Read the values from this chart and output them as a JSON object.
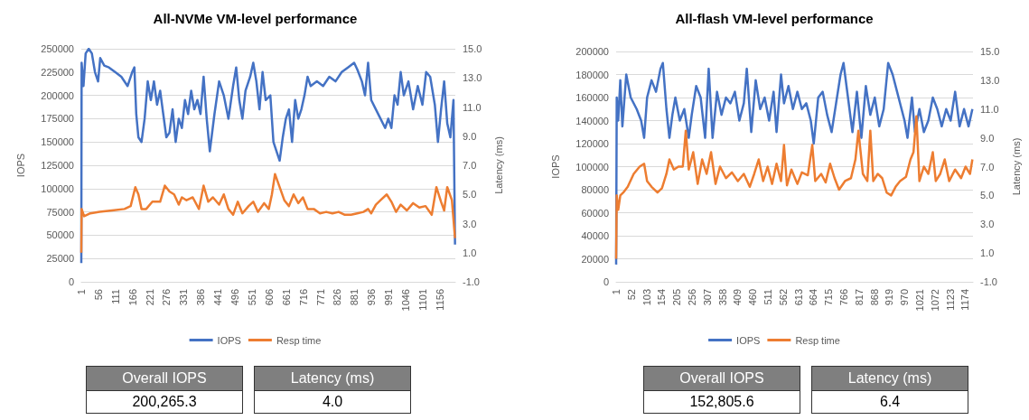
{
  "chart_data": [
    {
      "type": "line",
      "title": "All-NVMe VM-level performance",
      "ylabel": "IOPS",
      "y2label": "Latency (ms)",
      "xlim": [
        1,
        1206
      ],
      "xticks": [
        1,
        56,
        111,
        166,
        221,
        276,
        331,
        386,
        441,
        496,
        551,
        606,
        661,
        716,
        771,
        826,
        881,
        936,
        991,
        1046,
        1101,
        1156
      ],
      "ylim": [
        0,
        250000
      ],
      "yticks": [
        0,
        25000,
        50000,
        75000,
        100000,
        125000,
        150000,
        175000,
        200000,
        225000,
        250000
      ],
      "y2lim": [
        -1,
        15
      ],
      "y2ticks": [
        {
          "value": -1,
          "label": "-1.0"
        },
        {
          "value": 1,
          "label": "1.0"
        },
        {
          "value": 3,
          "label": "3.0"
        },
        {
          "value": 5,
          "label": "5.0"
        },
        {
          "value": 7,
          "label": "7.0"
        },
        {
          "value": 9,
          "label": "9.0"
        },
        {
          "value": 11,
          "label": "11.0"
        },
        {
          "value": 13,
          "label": "13.0"
        },
        {
          "value": 15,
          "label": "15.0"
        }
      ],
      "grid": "y",
      "legend": "bottom",
      "annotations": [
        "Overall IOPS",
        "200,265.3",
        "Latency (ms)",
        "4.0"
      ],
      "series": [
        {
          "name": "IOPS",
          "color": "#4472c4",
          "x": [
            1,
            2,
            8,
            15,
            25,
            35,
            45,
            55,
            62,
            75,
            90,
            110,
            130,
            150,
            165,
            172,
            178,
            185,
            195,
            205,
            215,
            225,
            235,
            245,
            255,
            265,
            275,
            285,
            295,
            305,
            315,
            325,
            335,
            345,
            355,
            365,
            375,
            385,
            395,
            405,
            415,
            430,
            445,
            460,
            475,
            490,
            500,
            510,
            520,
            530,
            545,
            555,
            565,
            575,
            585,
            595,
            610,
            620,
            630,
            640,
            650,
            660,
            670,
            680,
            690,
            700,
            710,
            720,
            730,
            740,
            760,
            780,
            800,
            820,
            840,
            860,
            880,
            890,
            905,
            915,
            925,
            935,
            950,
            965,
            980,
            990,
            1000,
            1010,
            1020,
            1030,
            1040,
            1055,
            1070,
            1085,
            1100,
            1112,
            1125,
            1140,
            1150,
            1160,
            1170,
            1180,
            1190,
            1200,
            1205
          ],
          "values": [
            20000,
            235000,
            210000,
            245000,
            250000,
            245000,
            225000,
            215000,
            240000,
            232000,
            230000,
            225000,
            220000,
            210000,
            225000,
            230000,
            180000,
            155000,
            150000,
            175000,
            215000,
            195000,
            215000,
            190000,
            205000,
            180000,
            155000,
            160000,
            185000,
            150000,
            175000,
            165000,
            195000,
            180000,
            205000,
            185000,
            195000,
            180000,
            220000,
            175000,
            140000,
            180000,
            215000,
            200000,
            175000,
            210000,
            230000,
            195000,
            175000,
            205000,
            220000,
            235000,
            215000,
            185000,
            225000,
            195000,
            200000,
            150000,
            140000,
            130000,
            155000,
            175000,
            185000,
            150000,
            195000,
            175000,
            185000,
            200000,
            220000,
            210000,
            215000,
            210000,
            220000,
            215000,
            225000,
            230000,
            235000,
            228000,
            215000,
            200000,
            235000,
            195000,
            185000,
            175000,
            165000,
            175000,
            165000,
            200000,
            190000,
            225000,
            200000,
            215000,
            185000,
            210000,
            190000,
            225000,
            220000,
            190000,
            150000,
            185000,
            215000,
            170000,
            155000,
            195000,
            40000
          ]
        },
        {
          "name": "Resp time",
          "color": "#ed7d31",
          "axis": "y2",
          "x": [
            1,
            2,
            10,
            30,
            60,
            100,
            140,
            160,
            175,
            185,
            195,
            210,
            230,
            255,
            270,
            285,
            300,
            315,
            325,
            340,
            360,
            380,
            395,
            410,
            425,
            445,
            460,
            475,
            490,
            505,
            520,
            540,
            555,
            570,
            590,
            605,
            615,
            625,
            640,
            655,
            670,
            685,
            700,
            715,
            730,
            750,
            770,
            790,
            810,
            830,
            850,
            870,
            890,
            910,
            925,
            935,
            950,
            965,
            985,
            1000,
            1015,
            1030,
            1050,
            1070,
            1090,
            1110,
            1130,
            1145,
            1160,
            1170,
            1180,
            1195,
            1205
          ],
          "values": [
            1.0,
            4.0,
            3.5,
            3.7,
            3.8,
            3.9,
            4.0,
            4.2,
            5.5,
            5.0,
            4.0,
            4.0,
            4.5,
            4.5,
            5.6,
            5.2,
            5.0,
            4.3,
            4.8,
            4.6,
            4.8,
            4.0,
            5.6,
            4.5,
            4.8,
            4.3,
            5.0,
            4.0,
            3.6,
            4.5,
            3.7,
            4.2,
            4.5,
            3.8,
            4.4,
            4.0,
            5.0,
            6.4,
            5.5,
            4.6,
            4.2,
            5.0,
            4.4,
            4.8,
            4.0,
            4.0,
            3.7,
            3.8,
            3.7,
            3.8,
            3.6,
            3.6,
            3.7,
            3.8,
            4.0,
            3.7,
            4.3,
            4.6,
            5.0,
            4.5,
            3.8,
            4.3,
            3.9,
            4.4,
            4.1,
            4.2,
            3.6,
            5.5,
            4.5,
            3.9,
            5.5,
            4.6,
            2.0
          ]
        }
      ]
    },
    {
      "type": "line",
      "title": "All-flash VM-level performance",
      "ylabel": "IOPS",
      "y2label": "Latency (ms)",
      "xlim": [
        1,
        1200
      ],
      "xticks": [
        1,
        52,
        103,
        154,
        205,
        256,
        307,
        358,
        409,
        460,
        511,
        562,
        613,
        664,
        715,
        766,
        817,
        868,
        919,
        970,
        1021,
        1072,
        1123,
        1174
      ],
      "ylim": [
        0,
        200000
      ],
      "yticks": [
        0,
        20000,
        40000,
        60000,
        80000,
        100000,
        120000,
        140000,
        160000,
        180000,
        200000
      ],
      "y2lim": [
        -1,
        15
      ],
      "y2ticks": [
        {
          "value": -1,
          "label": "-1.0"
        },
        {
          "value": 1,
          "label": "1.0"
        },
        {
          "value": 3,
          "label": "3.0"
        },
        {
          "value": 5,
          "label": "5.0"
        },
        {
          "value": 7,
          "label": "7.0"
        },
        {
          "value": 9,
          "label": "9.0"
        },
        {
          "value": 11,
          "label": "11.0"
        },
        {
          "value": 13,
          "label": "13.0"
        },
        {
          "value": 15,
          "label": "15.0"
        }
      ],
      "grid": "y",
      "legend": "bottom",
      "annotations": [
        "Overall IOPS",
        "152,805.6",
        "Latency (ms)",
        "6.4"
      ],
      "series": [
        {
          "name": "IOPS",
          "color": "#4472c4",
          "x": [
            1,
            3,
            8,
            15,
            22,
            35,
            50,
            70,
            85,
            95,
            105,
            120,
            135,
            150,
            158,
            170,
            180,
            190,
            200,
            215,
            230,
            245,
            255,
            270,
            285,
            300,
            312,
            325,
            340,
            355,
            370,
            385,
            400,
            415,
            430,
            440,
            455,
            470,
            485,
            500,
            515,
            530,
            540,
            555,
            565,
            580,
            595,
            610,
            625,
            640,
            655,
            665,
            680,
            695,
            710,
            725,
            740,
            755,
            765,
            780,
            795,
            810,
            825,
            840,
            855,
            870,
            885,
            900,
            915,
            930,
            945,
            960,
            970,
            980,
            995,
            1005,
            1020,
            1035,
            1050,
            1065,
            1080,
            1095,
            1110,
            1125,
            1140,
            1155,
            1170,
            1185,
            1198
          ],
          "values": [
            15000,
            160000,
            140000,
            175000,
            135000,
            180000,
            160000,
            150000,
            140000,
            125000,
            160000,
            175000,
            165000,
            185000,
            190000,
            150000,
            125000,
            145000,
            160000,
            140000,
            150000,
            125000,
            145000,
            170000,
            160000,
            125000,
            185000,
            125000,
            165000,
            145000,
            160000,
            155000,
            165000,
            140000,
            155000,
            185000,
            130000,
            175000,
            150000,
            160000,
            140000,
            165000,
            130000,
            180000,
            155000,
            170000,
            150000,
            165000,
            150000,
            155000,
            140000,
            120000,
            160000,
            165000,
            145000,
            130000,
            155000,
            180000,
            190000,
            160000,
            130000,
            165000,
            125000,
            170000,
            145000,
            160000,
            135000,
            150000,
            190000,
            180000,
            165000,
            150000,
            140000,
            125000,
            160000,
            130000,
            150000,
            130000,
            140000,
            160000,
            150000,
            135000,
            150000,
            140000,
            165000,
            135000,
            150000,
            135000,
            150000
          ]
        },
        {
          "name": "Resp time",
          "color": "#ed7d31",
          "axis": "y2",
          "x": [
            1,
            3,
            8,
            15,
            25,
            40,
            60,
            80,
            95,
            105,
            120,
            140,
            155,
            170,
            180,
            195,
            210,
            225,
            235,
            245,
            260,
            275,
            290,
            305,
            320,
            335,
            350,
            370,
            390,
            410,
            430,
            450,
            465,
            480,
            495,
            510,
            525,
            540,
            555,
            565,
            575,
            590,
            610,
            625,
            645,
            660,
            670,
            690,
            705,
            720,
            735,
            750,
            770,
            790,
            805,
            815,
            830,
            845,
            855,
            865,
            880,
            895,
            910,
            925,
            940,
            955,
            975,
            990,
            1000,
            1010,
            1020,
            1035,
            1050,
            1065,
            1075,
            1090,
            1105,
            1120,
            1140,
            1160,
            1175,
            1190,
            1198
          ],
          "values": [
            0.6,
            5.0,
            4.0,
            5.0,
            5.2,
            5.6,
            6.5,
            7.0,
            7.2,
            6.0,
            5.6,
            5.2,
            5.5,
            6.5,
            7.5,
            6.8,
            7.0,
            7.0,
            9.5,
            6.8,
            8.0,
            5.8,
            7.5,
            6.5,
            8.0,
            5.8,
            7.0,
            6.2,
            6.6,
            6.0,
            6.5,
            5.6,
            6.5,
            7.5,
            6.0,
            7.0,
            5.8,
            7.2,
            6.0,
            8.5,
            5.7,
            6.8,
            5.8,
            6.6,
            6.4,
            8.5,
            6.0,
            6.5,
            5.9,
            7.2,
            6.2,
            5.4,
            6.0,
            6.2,
            7.5,
            9.5,
            6.5,
            6.0,
            9.5,
            6.0,
            6.5,
            6.2,
            5.2,
            5.0,
            5.6,
            6.0,
            6.3,
            7.5,
            8.0,
            10.5,
            6.0,
            7.0,
            6.5,
            8.0,
            6.0,
            6.5,
            7.5,
            6.0,
            6.8,
            6.2,
            7.0,
            6.5,
            7.5
          ]
        }
      ]
    }
  ]
}
